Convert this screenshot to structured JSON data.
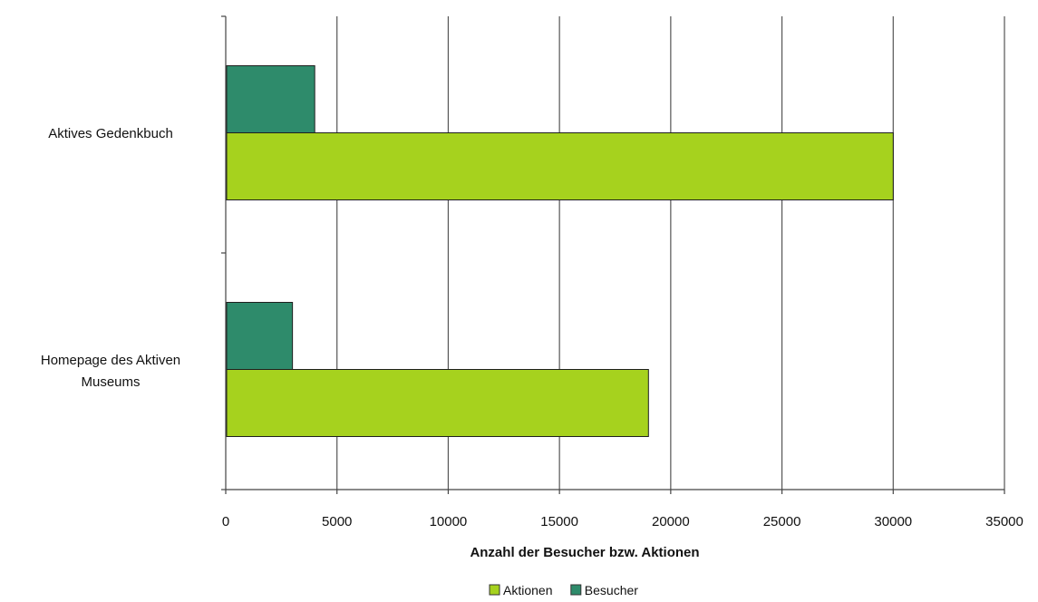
{
  "chart_data": {
    "type": "bar",
    "orientation": "horizontal",
    "categories": [
      "Aktives Gedenkbuch",
      "Homepage des Aktiven Museums"
    ],
    "category_label_lines": [
      [
        "Aktives Gedenkbuch"
      ],
      [
        "Homepage des Aktiven",
        "Museums"
      ]
    ],
    "series": [
      {
        "name": "Besucher",
        "color": "#2e8b6b",
        "values": [
          4000,
          3000
        ]
      },
      {
        "name": "Aktionen",
        "color": "#a6d21e",
        "values": [
          30000,
          19000
        ]
      }
    ],
    "xlim": [
      0,
      35000
    ],
    "xticks": [
      "0",
      "5000",
      "10000",
      "15000",
      "20000",
      "25000",
      "30000",
      "35000"
    ],
    "xlabel": "Anzahl der Besucher bzw. Aktionen",
    "ylabel": "",
    "title": "",
    "grid": "vertical",
    "legend": {
      "position": "bottom",
      "entries": [
        "Aktionen",
        "Besucher"
      ]
    }
  }
}
